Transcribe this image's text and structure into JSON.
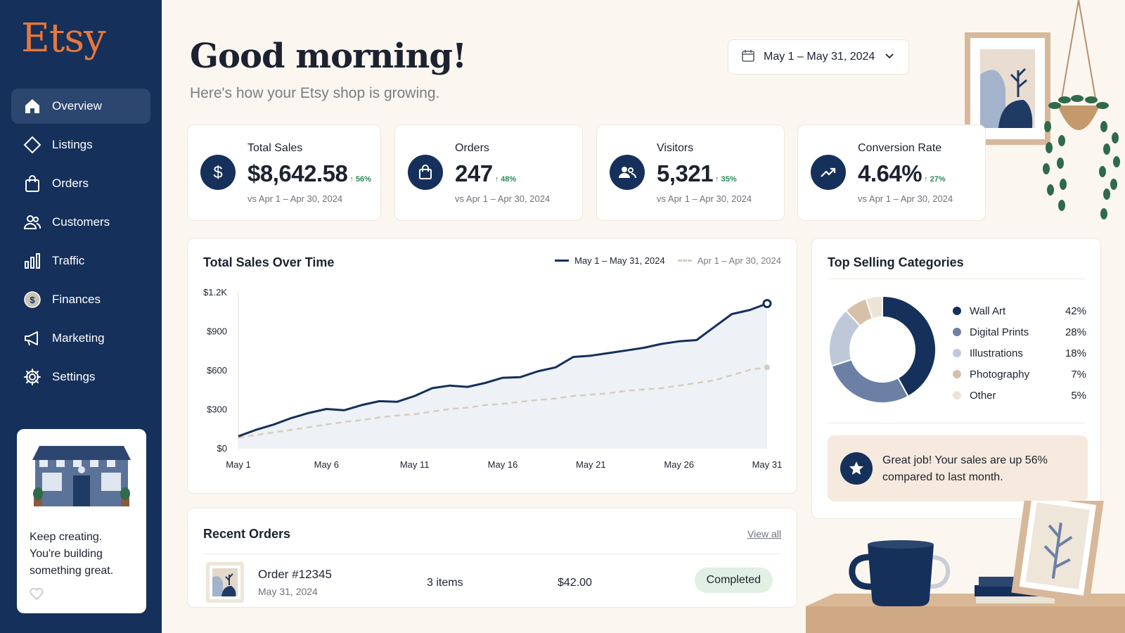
{
  "brand": {
    "logo": "Etsy",
    "color": "#e8773a"
  },
  "sidebar": {
    "items": [
      {
        "label": "Overview",
        "icon": "home-icon",
        "active": true
      },
      {
        "label": "Listings",
        "icon": "tag-icon"
      },
      {
        "label": "Orders",
        "icon": "shopping-bag-icon"
      },
      {
        "label": "Customers",
        "icon": "users-icon"
      },
      {
        "label": "Traffic",
        "icon": "bar-chart-icon"
      },
      {
        "label": "Finances",
        "icon": "coin-icon"
      },
      {
        "label": "Marketing",
        "icon": "megaphone-icon"
      },
      {
        "label": "Settings",
        "icon": "gear-icon"
      }
    ],
    "promo": {
      "line1": "Keep creating.",
      "line2": "You're building",
      "line3": "something great."
    }
  },
  "header": {
    "greeting": "Good morning!",
    "subtitle": "Here's how your Etsy shop is growing.",
    "date_range": "May 1 – May 31, 2024"
  },
  "stats": [
    {
      "label": "Total Sales",
      "value": "$8,642.58",
      "change": "↑ 56%",
      "compare": "vs Apr 1 – Apr 30, 2024",
      "icon": "dollar-icon"
    },
    {
      "label": "Orders",
      "value": "247",
      "change": "↑ 48%",
      "compare": "vs Apr 1 – Apr 30, 2024",
      "icon": "shopping-bag-icon"
    },
    {
      "label": "Visitors",
      "value": "5,321",
      "change": "↑ 35%",
      "compare": "vs Apr 1 – Apr 30, 2024",
      "icon": "users-icon"
    },
    {
      "label": "Conversion Rate",
      "value": "4.64%",
      "change": "↑ 27%",
      "compare": "vs Apr 1 – Apr 30, 2024",
      "icon": "trend-up-icon"
    }
  ],
  "sales_chart": {
    "title": "Total Sales Over Time",
    "legend_current": "May 1 – May 31, 2024",
    "legend_previous": "Apr 1 – Apr 30, 2024"
  },
  "chart_data": {
    "type": "line",
    "title": "Total Sales Over Time",
    "xlabel": "",
    "ylabel": "",
    "x_ticks": [
      "May 1",
      "May 6",
      "May 11",
      "May 16",
      "May 21",
      "May 26",
      "May 31"
    ],
    "y_ticks": [
      "$0",
      "$300",
      "$600",
      "$900",
      "$1.2K"
    ],
    "ylim": [
      0,
      1200
    ],
    "x": [
      1,
      2,
      3,
      4,
      5,
      6,
      7,
      8,
      9,
      10,
      11,
      12,
      13,
      14,
      15,
      16,
      17,
      18,
      19,
      20,
      21,
      22,
      23,
      24,
      25,
      26,
      27,
      28,
      29,
      30,
      31
    ],
    "series": [
      {
        "name": "May 1 – May 31, 2024",
        "color": "#15305a",
        "style": "solid",
        "fill": true,
        "values": [
          90,
          140,
          180,
          230,
          270,
          300,
          290,
          330,
          360,
          355,
          400,
          460,
          480,
          470,
          500,
          540,
          545,
          590,
          620,
          700,
          710,
          730,
          750,
          770,
          800,
          820,
          830,
          930,
          1030,
          1060,
          1110
        ]
      },
      {
        "name": "Apr 1 – Apr 30, 2024",
        "color": "#d8ccbc",
        "style": "dashed",
        "fill": false,
        "values": [
          80,
          100,
          120,
          140,
          160,
          180,
          200,
          215,
          235,
          250,
          260,
          280,
          300,
          310,
          330,
          340,
          355,
          370,
          380,
          400,
          410,
          420,
          440,
          450,
          460,
          480,
          500,
          520,
          560,
          600,
          620
        ]
      }
    ],
    "grid": false,
    "legend": "top-right"
  },
  "categories": {
    "title": "Top Selling Categories",
    "items": [
      {
        "name": "Wall Art",
        "pct": "42%",
        "value": 42,
        "color": "#15305a"
      },
      {
        "name": "Digital Prints",
        "pct": "28%",
        "value": 28,
        "color": "#6b80a4"
      },
      {
        "name": "Illustrations",
        "pct": "18%",
        "value": 18,
        "color": "#bfc8d8"
      },
      {
        "name": "Photography",
        "pct": "7%",
        "value": 7,
        "color": "#d6c1a8"
      },
      {
        "name": "Other",
        "pct": "5%",
        "value": 5,
        "color": "#ece4d6"
      }
    ],
    "callout_line1": "Great job! Your sales are up 56%",
    "callout_line2": "compared to last month."
  },
  "recent_orders": {
    "title": "Recent Orders",
    "view_all": "View all",
    "rows": [
      {
        "id": "Order #12345",
        "date": "May 31, 2024",
        "items": "3 items",
        "total": "$42.00",
        "status": "Completed"
      }
    ]
  },
  "colors": {
    "navy": "#15305a",
    "accent": "#e8773a",
    "success": "#2e8b57",
    "background": "#fbf6ef"
  }
}
